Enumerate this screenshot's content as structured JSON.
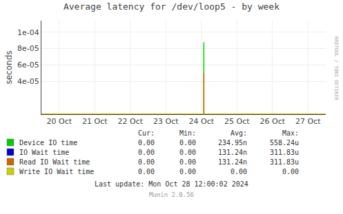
{
  "chart_data": {
    "type": "line",
    "title": "Average latency for /dev/loop5 - by week",
    "y_label": "seconds",
    "xlim": [
      -0.5,
      7.5
    ],
    "xticks": [
      {
        "value": 0,
        "label": "20 Oct"
      },
      {
        "value": 1,
        "label": "21 Oct"
      },
      {
        "value": 2,
        "label": "22 Oct"
      },
      {
        "value": 3,
        "label": "23 Oct"
      },
      {
        "value": 4,
        "label": "24 Oct"
      },
      {
        "value": 5,
        "label": "25 Oct"
      },
      {
        "value": 6,
        "label": "26 Oct"
      },
      {
        "value": 7,
        "label": "27 Oct"
      }
    ],
    "ylim": [
      0,
      0.000114
    ],
    "yticks": [
      {
        "value": 4e-05,
        "label": "4e-05"
      },
      {
        "value": 6e-05,
        "label": "6e-05"
      },
      {
        "value": 8e-05,
        "label": "8e-05"
      },
      {
        "value": 0.0001,
        "label": "1e-04"
      }
    ],
    "grid": true,
    "legend_header": [
      "Cur:",
      "Min:",
      "Avg:",
      "Max:"
    ],
    "series": [
      {
        "name": "Device IO time",
        "color": "#00cc00",
        "x": [
          4.07,
          4.07
        ],
        "values": [
          0,
          8.78e-05
        ],
        "cur": "0.00",
        "min": "0.00",
        "avg": "234.95n",
        "max": "558.24u"
      },
      {
        "name": "IO Wait time",
        "color": "#0000cc",
        "x": [],
        "values": [],
        "cur": "0.00",
        "min": "0.00",
        "avg": "131.24n",
        "max": "311.83u"
      },
      {
        "name": "Read IO Wait time",
        "color": "#cc6600",
        "x": [
          -0.5,
          7.5,
          null,
          4.07,
          4.07
        ],
        "values": [
          2e-07,
          2e-07,
          null,
          0,
          5.05e-05
        ],
        "cur": "0.00",
        "min": "0.00",
        "avg": "131.24n",
        "max": "311.83u"
      },
      {
        "name": "Write IO Wait time",
        "color": "#cccc00",
        "x": [
          -0.5,
          7.5
        ],
        "values": [
          1e-07,
          1e-07
        ],
        "cur": "0.00",
        "min": "0.00",
        "avg": "0.00",
        "max": "0.00"
      }
    ],
    "notes": [
      "Last update: Mon Oct 28 12:00:02 2024",
      "Munin 2.0.56"
    ],
    "watermark": "RRDTOOL / TOBI OETIKER"
  }
}
